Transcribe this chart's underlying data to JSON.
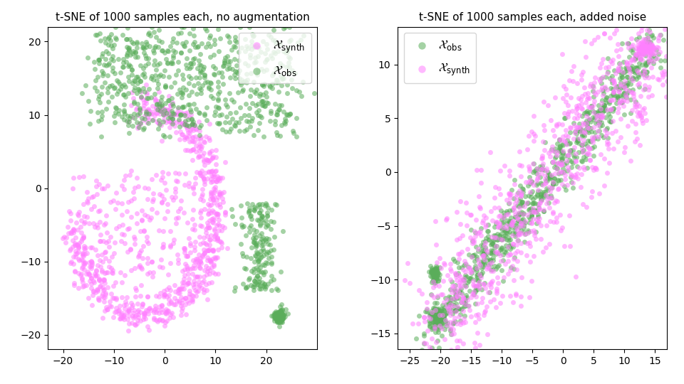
{
  "title_left": "t-SNE of 1000 samples each, no augmentation",
  "title_right": "t-SNE of 1000 samples each, added noise",
  "legend_left_0": "$\\mathcal{X}_{\\mathrm{synth}}$",
  "legend_left_1": "$\\mathcal{X}_{\\mathrm{obs}}$",
  "legend_right_0": "$\\mathcal{X}_{\\mathrm{obs}}$",
  "legend_right_1": "$\\mathcal{X}_{\\mathrm{synth}}$",
  "color_synth": "#ff80ff",
  "color_obs": "#5aad5a",
  "alpha_synth": 0.55,
  "alpha_obs": 0.55,
  "marker_size": 25,
  "xlim_left": [
    -23,
    30
  ],
  "ylim_left": [
    -22,
    22
  ],
  "xlim_right": [
    -27,
    17
  ],
  "ylim_right": [
    -16.5,
    13.5
  ],
  "xticks_left": [
    -20,
    -10,
    0,
    10,
    20
  ],
  "yticks_left": [
    -20,
    -10,
    0,
    10,
    20
  ],
  "xticks_right": [
    -25,
    -20,
    -15,
    -10,
    -5,
    0,
    5,
    10,
    15
  ],
  "yticks_right": [
    -15,
    -10,
    -5,
    0,
    5,
    10
  ]
}
